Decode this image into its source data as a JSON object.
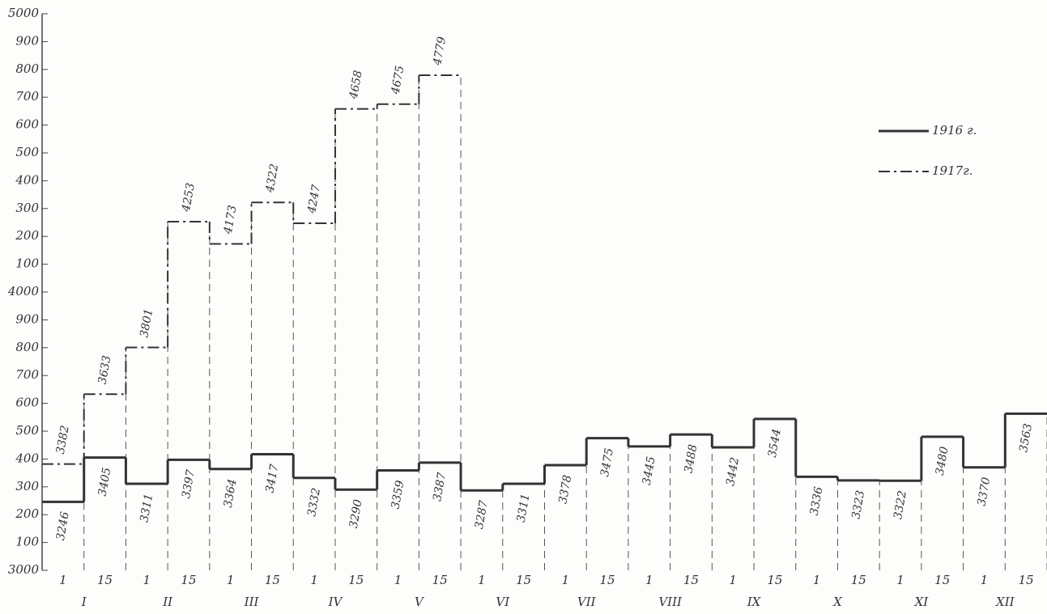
{
  "chart_data": {
    "type": "step",
    "categories": [
      "1",
      "15",
      "1",
      "15",
      "1",
      "15",
      "1",
      "15",
      "1",
      "15",
      "1",
      "15",
      "1",
      "15",
      "1",
      "15",
      "1",
      "15",
      "1",
      "15",
      "1",
      "15",
      "1",
      "15"
    ],
    "months": [
      "I",
      "II",
      "III",
      "IV",
      "V",
      "VI",
      "VII",
      "VIII",
      "IX",
      "X",
      "XI",
      "XII"
    ],
    "series": [
      {
        "name": "1916 г.",
        "color": "#333333",
        "style": "solid",
        "values": [
          3246,
          3405,
          3311,
          3397,
          3364,
          3417,
          3332,
          3290,
          3359,
          3387,
          3287,
          3311,
          3378,
          3475,
          3445,
          3488,
          3442,
          3544,
          3336,
          3323,
          3322,
          3480,
          3370,
          3563
        ]
      },
      {
        "name": "1917г.",
        "color": "#333333",
        "style": "dash-dot",
        "values": [
          3382,
          3633,
          3801,
          4253,
          4173,
          4322,
          4247,
          4658,
          4675,
          4779,
          null,
          null,
          null,
          null,
          null,
          null,
          null,
          null,
          null,
          null,
          null,
          null,
          null,
          null
        ]
      }
    ],
    "ylim": [
      3000,
      5000
    ],
    "yticks": [
      3000,
      {
        "value": 3100,
        "label": "100"
      },
      {
        "value": 3200,
        "label": "200"
      },
      {
        "value": 3300,
        "label": "300"
      },
      {
        "value": 3400,
        "label": "400"
      },
      {
        "value": 3500,
        "label": "500"
      },
      {
        "value": 3600,
        "label": "600"
      },
      {
        "value": 3700,
        "label": "700"
      },
      {
        "value": 3800,
        "label": "800"
      },
      {
        "value": 3900,
        "label": "900"
      },
      4000,
      {
        "value": 4100,
        "label": "100"
      },
      {
        "value": 4200,
        "label": "200"
      },
      {
        "value": 4300,
        "label": "300"
      },
      {
        "value": 4400,
        "label": "400"
      },
      {
        "value": 4500,
        "label": "500"
      },
      {
        "value": 4600,
        "label": "600"
      },
      {
        "value": 4700,
        "label": "700"
      },
      {
        "value": 4800,
        "label": "800"
      },
      {
        "value": 4900,
        "label": "900"
      },
      5000
    ],
    "legend": "top-right"
  }
}
